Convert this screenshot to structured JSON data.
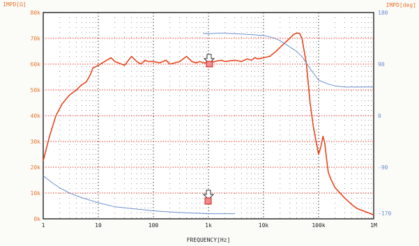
{
  "chart_data": {
    "type": "line",
    "title": "",
    "xlabel": "FREQUENCY[Hz]",
    "ylabel_left": "IMPD[Ω]",
    "ylabel_right": "IMPD[deg]",
    "x_scale": "log",
    "xlim": [
      1,
      1000000
    ],
    "ylim_left": [
      0,
      80000
    ],
    "ylim_right": [
      -180,
      180
    ],
    "x_ticks": [
      "1",
      "10",
      "100",
      "1k",
      "10k",
      "100k",
      "1M"
    ],
    "y_ticks_left": [
      "0k",
      "10k",
      "20k",
      "30k",
      "40k",
      "50k",
      "60k",
      "70k",
      "80k"
    ],
    "y_ticks_right": [
      "-170",
      "-90",
      "0",
      "90",
      "180"
    ],
    "grid": true,
    "series": [
      {
        "axis": "left",
        "color": "#e6441c",
        "x": [
          1,
          1.3,
          1.7,
          2.2,
          3,
          4,
          5,
          6,
          7,
          8,
          10,
          13,
          17,
          20,
          30,
          40,
          50,
          60,
          70,
          80,
          100,
          130,
          170,
          200,
          300,
          400,
          500,
          600,
          700,
          800,
          1000,
          1300,
          1700,
          2000,
          3000,
          4000,
          5000,
          6000,
          7000,
          8000,
          10000,
          13000,
          17000,
          20000,
          25000,
          30000,
          35000,
          40000,
          45000,
          50000,
          60000,
          70000,
          80000,
          90000,
          100000,
          110000,
          120000,
          130000,
          140000,
          150000,
          170000,
          200000,
          300000,
          400000,
          500000,
          700000,
          1000000
        ],
        "values": [
          22500,
          32000,
          40000,
          44500,
          48000,
          50000,
          52000,
          53000,
          55500,
          58500,
          59500,
          61000,
          62500,
          61000,
          59500,
          63000,
          61000,
          60000,
          61500,
          61000,
          61000,
          60500,
          61500,
          60000,
          61000,
          63000,
          61000,
          60500,
          61000,
          60500,
          60500,
          61000,
          61500,
          61000,
          61500,
          61000,
          62000,
          61500,
          62500,
          62000,
          62500,
          63000,
          65000,
          66500,
          68500,
          70000,
          71500,
          72000,
          72000,
          70000,
          60000,
          45000,
          36000,
          30000,
          25000,
          28000,
          32000,
          29000,
          23000,
          18000,
          15000,
          12000,
          8000,
          5500,
          4000,
          2800,
          1500
        ]
      },
      {
        "axis": "right",
        "color": "#6a8fd0",
        "x": [
          1,
          1.5,
          2,
          3,
          5,
          10,
          20,
          50,
          100,
          200,
          500,
          1000,
          2000,
          3000
        ],
        "values": [
          -105,
          -118,
          -126,
          -135,
          -143,
          -152,
          -159,
          -163,
          -166,
          -168,
          -170,
          -171,
          -171,
          -171
        ]
      },
      {
        "axis": "right",
        "color": "#6a8fd0",
        "x": [
          800,
          900,
          1000,
          1500,
          2000,
          3000,
          5000,
          10000,
          15000,
          20000,
          30000,
          40000,
          50000,
          70000,
          100000,
          150000,
          200000,
          300000,
          500000,
          700000,
          1000000
        ],
        "values": [
          143,
          143,
          143,
          144,
          144,
          143,
          142,
          140,
          136,
          131,
          120,
          112,
          103,
          82,
          62,
          55,
          52,
          50,
          50,
          50,
          50
        ]
      }
    ]
  }
}
